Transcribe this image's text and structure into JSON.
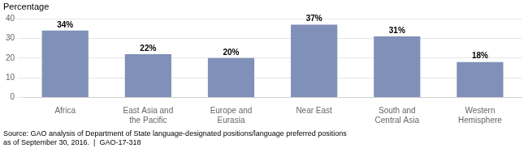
{
  "chart_data": {
    "type": "bar",
    "ylabel": "Percentage",
    "annotations": [
      "Source: GAO analysis of Department of State language-designated positions/language preferred positions\nas of September 30, 2016.  |  GAO-17-318"
    ],
    "categories": [
      "Africa",
      "East Asia and\nthe Pacific",
      "Europe and\nEurasia",
      "Near East",
      "South and\nCentral Asia",
      "Western\nHemisphere"
    ],
    "values": [
      34,
      22,
      20,
      37,
      31,
      18
    ],
    "value_labels": [
      "34%",
      "22%",
      "20%",
      "37%",
      "31%",
      "18%"
    ],
    "data_labels": true,
    "color": "#8090b8",
    "ylim": [
      0,
      40
    ],
    "yticks": [
      0,
      10,
      20,
      30,
      40
    ],
    "grid": true
  }
}
